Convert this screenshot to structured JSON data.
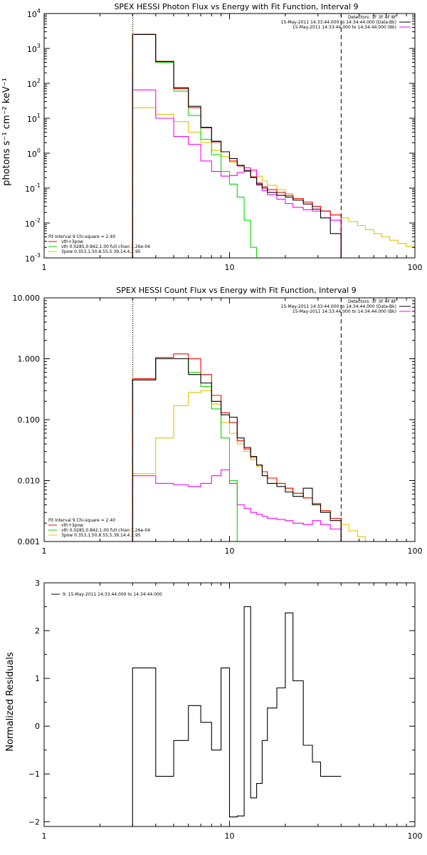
{
  "colors": {
    "black": "#000000",
    "red": "#ff0000",
    "green": "#00dd00",
    "yellow": "#e6c200",
    "magenta": "#ff00ff",
    "orange": "#e69500"
  },
  "chart_data": [
    {
      "type": "line",
      "title": "SPEX HESSI Photon Flux vs Energy with Fit Function, Interval 9",
      "ylabel": "photons s⁻¹ cm⁻² keV⁻¹",
      "xlabel": "",
      "xscale": "log",
      "yscale": "log",
      "xlim": [
        1,
        100
      ],
      "ylim": [
        0.001,
        10000
      ],
      "xticks": [
        1,
        10,
        100
      ],
      "xtick_labels": [
        "1",
        "10",
        "100"
      ],
      "yticks": [
        0.001,
        0.01,
        0.1,
        1,
        10,
        100,
        1000,
        10000
      ],
      "ytick_labels": [
        {
          "b": "10",
          "e": "-3"
        },
        {
          "b": "10",
          "e": "-2"
        },
        {
          "b": "10",
          "e": "-1"
        },
        {
          "b": "10",
          "e": "0"
        },
        {
          "b": "10",
          "e": "1"
        },
        {
          "b": "10",
          "e": "2"
        },
        {
          "b": "10",
          "e": "3"
        },
        {
          "b": "10",
          "e": "4"
        }
      ],
      "vlines": [
        {
          "x": 3.0,
          "style": "dotted"
        },
        {
          "x": 40,
          "style": "dashed"
        }
      ],
      "legend_top_right": [
        {
          "text": "Detectors: 1F 3F 4F 8F",
          "color": "black",
          "line": false
        },
        {
          "text": "15-May-2011 14:33:44.000 to 14:34:44.000 (Data-Bk)",
          "color": "black",
          "line": true
        },
        {
          "text": "15-May-2011 14:33:44.000 to 14:34:44.000 (Bk)",
          "color": "magenta",
          "line": true
        }
      ],
      "legend_bottom_left": [
        {
          "text": "Fit Interval 9    Chi-square = 2.40",
          "color": "black",
          "line": false
        },
        {
          "text": "vth+3pow",
          "color": "red",
          "line": true
        },
        {
          "text": "vth 0.0285,0.842,1.00   full chian 1.26e-04",
          "color": "green",
          "line": true
        },
        {
          "text": "3pow 0.353,1.50,8.55,5.39,14.4,1.95",
          "color": "yellow",
          "line": true
        }
      ],
      "edges": [
        3.0,
        4.0,
        5.0,
        6.0,
        7.0,
        8.0,
        9.0,
        10.0,
        11.0,
        12.0,
        13.0,
        14.0,
        15.0,
        16.0,
        18.0,
        20.0,
        22.0,
        25.0,
        28.0,
        31.0,
        35.0,
        40.0
      ],
      "ext_edges": [
        40.0,
        44.0,
        49.0,
        54.0,
        60.0,
        66.0,
        73.0,
        81.0,
        90.0,
        100.0
      ],
      "series": [
        {
          "name": "Data-Bk",
          "color": "black",
          "values": [
            2500,
            420,
            75,
            22,
            5.5,
            2.2,
            1.1,
            0.7,
            0.45,
            0.32,
            0.2,
            0.13,
            0.1,
            0.075,
            0.062,
            0.055,
            0.045,
            0.035,
            0.025,
            0.014,
            0.005
          ]
        },
        {
          "name": "vth+3pow",
          "color": "red",
          "values": [
            2550,
            430,
            70,
            20,
            5.3,
            2.1,
            1.1,
            0.6,
            0.43,
            0.3,
            0.21,
            0.14,
            0.11,
            0.09,
            0.075,
            0.062,
            0.05,
            0.04,
            0.03,
            0.022,
            0.017
          ]
        },
        {
          "name": "vth",
          "color": "green",
          "values": [
            2500,
            400,
            60,
            12,
            2.5,
            0.9,
            0.3,
            0.13,
            0.055,
            0.012,
            0.002
          ]
        },
        {
          "name": "3pow",
          "color": "yellow",
          "values": [
            20,
            13,
            8,
            4,
            2,
            1.2,
            0.8,
            0.55,
            0.45,
            0.38,
            0.3,
            0.22,
            0.16,
            0.12,
            0.09,
            0.07,
            0.05,
            0.04,
            0.03,
            0.022,
            0.017
          ],
          "ext_values": [
            0.014,
            0.011,
            0.0085,
            0.0065,
            0.005,
            0.004,
            0.0032,
            0.0026,
            0.0021
          ]
        },
        {
          "name": "Bk",
          "color": "magenta",
          "values": [
            65,
            10,
            3,
            1.8,
            0.6,
            0.3,
            0.22,
            0.23,
            0.28,
            0.38,
            0.33,
            0.12,
            0.085,
            0.065,
            0.048,
            0.036,
            0.028,
            0.024,
            0.022,
            0.022,
            0.012
          ]
        }
      ]
    },
    {
      "type": "line",
      "title": "SPEX HESSI Count Flux vs Energy with Fit Function, Interval 9",
      "xlabel": "",
      "ylabel": "",
      "xscale": "log",
      "yscale": "log",
      "xlim": [
        1,
        100
      ],
      "ylim": [
        0.001,
        10
      ],
      "xticks": [
        1,
        10,
        100
      ],
      "xtick_labels": [
        "1",
        "10",
        "100"
      ],
      "yticks": [
        0.001,
        0.01,
        0.1,
        1,
        10
      ],
      "ytick_labels": [
        "0.001",
        "0.010",
        "0.100",
        "1.000",
        "10.000"
      ],
      "vlines": [
        {
          "x": 3.0,
          "style": "dotted"
        },
        {
          "x": 40,
          "style": "dashed"
        }
      ],
      "legend_top_right": [
        {
          "text": "Detectors: 1F 3F 4F 8F",
          "color": "black",
          "line": false
        },
        {
          "text": "15-May-2011 14:33:44.000 to 14:34:44.000 (Data-Bk)",
          "color": "black",
          "line": true
        },
        {
          "text": "15-May-2011 14:33:44.000 to 14:34:44.000 (Bk)",
          "color": "magenta",
          "line": true
        }
      ],
      "legend_bottom_left": [
        {
          "text": "Fit Interval 9    Chi-square = 2.40",
          "color": "black",
          "line": false
        },
        {
          "text": "vth+3pow",
          "color": "red",
          "line": true
        },
        {
          "text": "vth 0.0285,0.842,1.00   full chian 1.26e-04",
          "color": "green",
          "line": true
        },
        {
          "text": "3pow 0.353,1.50,8.55,5.39,14.4,1.95",
          "color": "yellow",
          "line": true
        }
      ],
      "edges": [
        3.0,
        4.0,
        5.0,
        6.0,
        7.0,
        8.0,
        9.0,
        10.0,
        11.0,
        12.0,
        13.0,
        14.0,
        15.0,
        16.0,
        18.0,
        20.0,
        22.0,
        25.0,
        28.0,
        31.0,
        35.0,
        40.0
      ],
      "ext_edges": [
        40.0,
        44.0,
        49.0,
        54.0,
        60.0,
        66.0,
        73.0
      ],
      "series": [
        {
          "name": "Data-Bk",
          "color": "black",
          "values": [
            0.45,
            1.0,
            1.0,
            0.55,
            0.4,
            0.2,
            0.12,
            0.11,
            0.05,
            0.035,
            0.025,
            0.018,
            0.012,
            0.009,
            0.008,
            0.0065,
            0.0055,
            0.0075,
            0.004,
            0.003,
            0.0022
          ]
        },
        {
          "name": "vth+3pow",
          "color": "red",
          "values": [
            0.47,
            1.05,
            1.2,
            1.0,
            0.55,
            0.25,
            0.13,
            0.09,
            0.045,
            0.033,
            0.024,
            0.018,
            0.014,
            0.011,
            0.009,
            0.0075,
            0.0062,
            0.0052,
            0.0042,
            0.0032,
            0.0024
          ]
        },
        {
          "name": "vth",
          "color": "green",
          "values": [
            0.45,
            1.0,
            1.0,
            0.6,
            0.35,
            0.15,
            0.05,
            0.01,
            0.001
          ]
        },
        {
          "name": "3pow",
          "color": "yellow",
          "values": [
            0.013,
            0.05,
            0.17,
            0.28,
            0.3,
            0.18,
            0.09,
            0.06,
            0.04,
            0.03,
            0.022,
            0.017,
            0.014,
            0.011,
            0.009,
            0.0075,
            0.0062,
            0.0052,
            0.0042,
            0.0032,
            0.0024
          ],
          "ext_values": [
            0.0019,
            0.0015,
            0.0012,
            0.001,
            0.001,
            0.001
          ]
        },
        {
          "name": "Bk",
          "color": "magenta",
          "values": [
            0.012,
            0.009,
            0.0085,
            0.008,
            0.009,
            0.012,
            0.015,
            0.009,
            0.004,
            0.0035,
            0.003,
            0.0028,
            0.0026,
            0.0024,
            0.0023,
            0.0022,
            0.002,
            0.0019,
            0.0022,
            0.0019,
            0.0016
          ]
        }
      ]
    },
    {
      "type": "line",
      "title": "",
      "ylabel": "Normalized Residuals",
      "xlabel": "",
      "xscale": "log",
      "yscale": "linear",
      "xlim": [
        1,
        100
      ],
      "ylim": [
        -2.1,
        3
      ],
      "xticks": [
        1,
        10,
        100
      ],
      "xtick_labels": [
        "1",
        "10",
        "100"
      ],
      "yticks": [
        -2,
        -1,
        0,
        1,
        2,
        3
      ],
      "ytick_labels": [
        "−2",
        "−1",
        "0",
        "1",
        "2",
        "3"
      ],
      "legend_top_left": [
        {
          "text": "9: 15-May-2011 14:33:44.000 to 14:34:44.000",
          "color": "black",
          "line": true
        }
      ],
      "edges": [
        3.0,
        4.0,
        5.0,
        6.0,
        7.0,
        8.0,
        9.0,
        10.0,
        11.0,
        12.0,
        13.0,
        14.0,
        15.0,
        16.0,
        18.0,
        20.0,
        22.0,
        25.0,
        28.0,
        31.0,
        35.0,
        40.0
      ],
      "series": [
        {
          "name": "Residuals",
          "color": "black",
          "values": [
            1.22,
            -1.05,
            -0.3,
            0.43,
            0.08,
            -0.5,
            1.22,
            -1.9,
            -1.88,
            2.5,
            -1.5,
            -1.2,
            -0.3,
            0.38,
            0.8,
            2.37,
            0.95,
            -0.4,
            -0.75,
            -1.05,
            -1.05
          ]
        }
      ]
    }
  ]
}
